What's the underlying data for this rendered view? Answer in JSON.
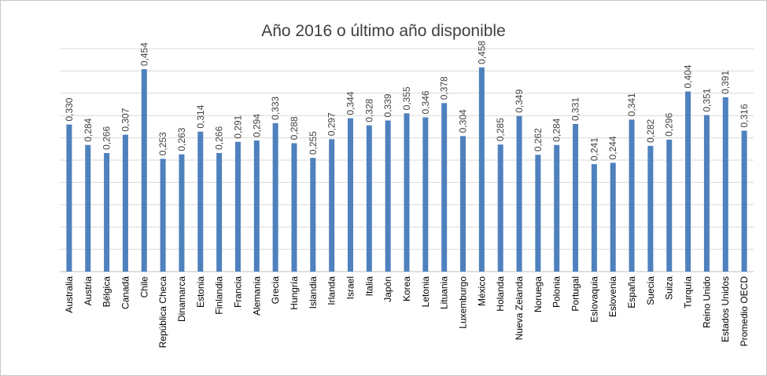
{
  "chart_data": {
    "type": "bar",
    "title": "Año 2016 o último año disponible",
    "xlabel": "",
    "ylabel": "",
    "ylim": [
      0,
      0.5
    ],
    "grid": true,
    "legend": "none",
    "bar_color": "#4e81bd",
    "categories": [
      "Australia",
      "Austria",
      "Bélgica",
      "Canadá",
      "Chile",
      "República Checa",
      "Dinamarca",
      "Estonia",
      "Finlandia",
      "Francia",
      "Alemania",
      "Grecia",
      "Hungría",
      "Islandia",
      "Irlanda",
      "Israel",
      "Italia",
      "Japón",
      "Korea",
      "Letonia",
      "Lituania",
      "Luxemburgo",
      "México",
      "Holanda",
      "Nueva Zelanda",
      "Noruega",
      "Polonia",
      "Portugal",
      "Eslovaquia",
      "Eslovenia",
      "España",
      "Suecia",
      "Suiza",
      "Turquía",
      "Reino Unido",
      "Estados Unidos",
      "Promedio OECD"
    ],
    "values": [
      0.33,
      0.284,
      0.266,
      0.307,
      0.454,
      0.253,
      0.263,
      0.314,
      0.266,
      0.291,
      0.294,
      0.333,
      0.288,
      0.255,
      0.297,
      0.344,
      0.328,
      0.339,
      0.355,
      0.346,
      0.378,
      0.304,
      0.458,
      0.285,
      0.349,
      0.262,
      0.284,
      0.331,
      0.241,
      0.244,
      0.341,
      0.282,
      0.296,
      0.404,
      0.351,
      0.391,
      0.316
    ],
    "data_labels": [
      "0,330",
      "0,284",
      "0,266",
      "0,307",
      "0,454",
      "0,253",
      "0,263",
      "0,314",
      "0,266",
      "0,291",
      "0,294",
      "0,333",
      "0,288",
      "0,255",
      "0,297",
      "0,344",
      "0,328",
      "0,339",
      "0,355",
      "0,346",
      "0,378",
      "0,304",
      "0,458",
      "0,285",
      "0,349",
      "0,262",
      "0,284",
      "0,331",
      "0,241",
      "0,244",
      "0,341",
      "0,282",
      "0,296",
      "0,404",
      "0,351",
      "0,391",
      "0,316"
    ]
  }
}
